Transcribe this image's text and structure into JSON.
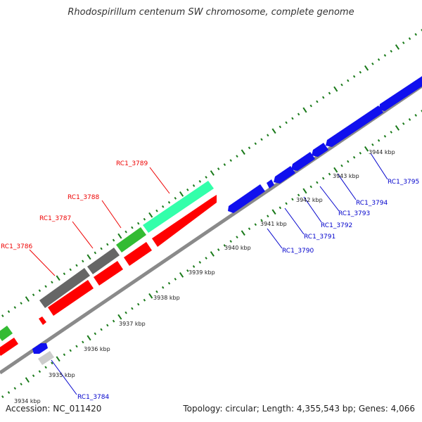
{
  "title": "Rhodospirillum centenum SW chromosome, complete genome",
  "footer": {
    "accession": "Accession: NC_011420",
    "summary": "Topology: circular; Length: 4,355,543 bp; Genes: 4,066"
  },
  "colors": {
    "backbone": "#8a8a8a",
    "tick": "#1a7a1a",
    "reverse_strand_gene": "#1010ee",
    "forward_strand_gene": "#ff0000",
    "other_gene_grey": "#666666",
    "other_gene_green": "#33bb33",
    "other_gene_teal": "#33ffaa",
    "forward_label": "#ee0000",
    "reverse_label": "#0000cc"
  },
  "scale": {
    "unit": "kbp",
    "labels": [
      "3934 kbp",
      "3935 kbp",
      "3936 kbp",
      "3937 kbp",
      "3938 kbp",
      "3939 kbp",
      "3940 kbp",
      "3941 kbp",
      "3942 kbp",
      "3943 kbp",
      "3944 kbp"
    ]
  },
  "genes": {
    "forward_labels": [
      "RC1_3786",
      "RC1_3787",
      "RC1_3788",
      "RC1_3789"
    ],
    "reverse_labels": [
      "RC1_3784",
      "RC1_3790",
      "RC1_3791",
      "RC1_3792",
      "RC1_3793",
      "RC1_3794",
      "RC1_3795"
    ]
  }
}
